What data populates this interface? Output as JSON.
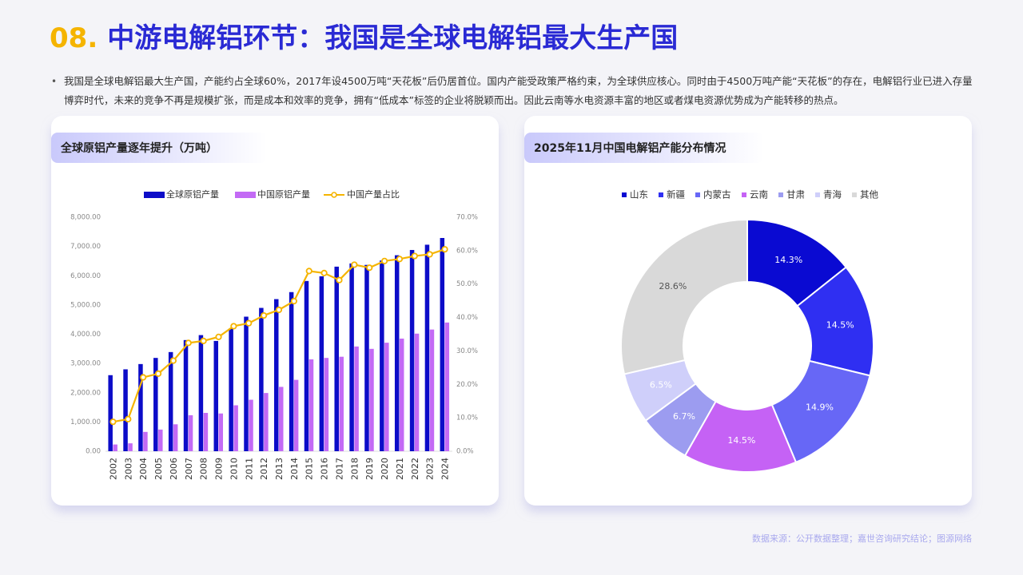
{
  "header": {
    "number": "08.",
    "title": "中游电解铝环节：我国是全球电解铝最大生产国"
  },
  "bullet": "我国是全球电解铝最大生产国，产能约占全球60%，2017年设4500万吨“天花板”后仍居首位。国内产能受政策严格约束，为全球供应核心。同时由于4500万吨产能“天花板”的存在，电解铝行业已进入存量博弈时代，未来的竞争不再是规模扩张，而是成本和效率的竞争，拥有“低成本”标签的企业将脱颖而出。因此云南等水电资源丰富的地区或者煤电资源优势成为产能转移的热点。",
  "source": "数据来源：公开数据整理；嘉世咨询研究结论；图源网络",
  "chart_data": [
    {
      "type": "combo",
      "title": "全球原铝产量逐年提升（万吨）",
      "categories": [
        "2002",
        "2003",
        "2004",
        "2005",
        "2006",
        "2007",
        "2008",
        "2009",
        "2010",
        "2011",
        "2012",
        "2013",
        "2014",
        "2015",
        "2016",
        "2017",
        "2018",
        "2019",
        "2020",
        "2021",
        "2022",
        "2023",
        "2024"
      ],
      "series": [
        {
          "name": "全球原铝产量",
          "type": "bar",
          "color": "#0c0cc8",
          "values": [
            2600,
            2800,
            2980,
            3190,
            3390,
            3800,
            3970,
            3770,
            4200,
            4600,
            4900,
            5200,
            5440,
            5820,
            5980,
            6310,
            6420,
            6370,
            6520,
            6700,
            6880,
            7060,
            7290
          ]
        },
        {
          "name": "中国原铝产量",
          "type": "bar",
          "color": "#c36af5",
          "values": [
            230,
            270,
            660,
            740,
            920,
            1230,
            1310,
            1290,
            1570,
            1760,
            1990,
            2200,
            2440,
            3140,
            3190,
            3230,
            3580,
            3500,
            3710,
            3850,
            4020,
            4160,
            4400
          ]
        },
        {
          "name": "中国产量占比",
          "type": "line",
          "axis": "y2",
          "color": "#f5b400",
          "values": [
            8.8,
            9.6,
            22.1,
            23.2,
            27.1,
            32.4,
            33.0,
            34.2,
            37.4,
            38.3,
            40.6,
            42.3,
            44.9,
            53.9,
            53.3,
            51.2,
            55.8,
            54.9,
            56.9,
            57.5,
            58.4,
            58.9,
            60.4
          ]
        }
      ],
      "ylim": [
        0,
        8000
      ],
      "yticks": [
        {
          "value": 0,
          "label": "0.00"
        },
        {
          "value": 1000,
          "label": "1,000.00"
        },
        {
          "value": 2000,
          "label": "2,000.00"
        },
        {
          "value": 3000,
          "label": "3,000.00"
        },
        {
          "value": 4000,
          "label": "4,000.00"
        },
        {
          "value": 5000,
          "label": "5,000.00"
        },
        {
          "value": 6000,
          "label": "6,000.00"
        },
        {
          "value": 7000,
          "label": "7,000.00"
        },
        {
          "value": 8000,
          "label": "8,000.00"
        }
      ],
      "y2lim": [
        0,
        70
      ],
      "y2ticks": [
        {
          "value": 0,
          "label": "0.0%"
        },
        {
          "value": 10,
          "label": "10.0%"
        },
        {
          "value": 20,
          "label": "20.0%"
        },
        {
          "value": 30,
          "label": "30.0%"
        },
        {
          "value": 40,
          "label": "40.0%"
        },
        {
          "value": 50,
          "label": "50.0%"
        },
        {
          "value": 60,
          "label": "60.0%"
        },
        {
          "value": 70,
          "label": "70.0%"
        }
      ],
      "grid": false,
      "legend": "top"
    },
    {
      "type": "donut",
      "title": "2025年11月中国电解铝产能分布情况",
      "categories": [
        "山东",
        "新疆",
        "内蒙古",
        "云南",
        "甘肃",
        "青海",
        "其他"
      ],
      "values": [
        14.3,
        14.5,
        14.9,
        14.5,
        6.7,
        6.5,
        28.6
      ],
      "value_labels": [
        "14.3%",
        "14.5%",
        "14.9%",
        "14.5%",
        "6.7%",
        "6.5%",
        "28.6%"
      ],
      "colors": [
        "#0a0ad2",
        "#2f2ff2",
        "#6767f6",
        "#c562f5",
        "#9c9cf0",
        "#cfcffa",
        "#d9d9d9"
      ],
      "legend": "top"
    }
  ]
}
